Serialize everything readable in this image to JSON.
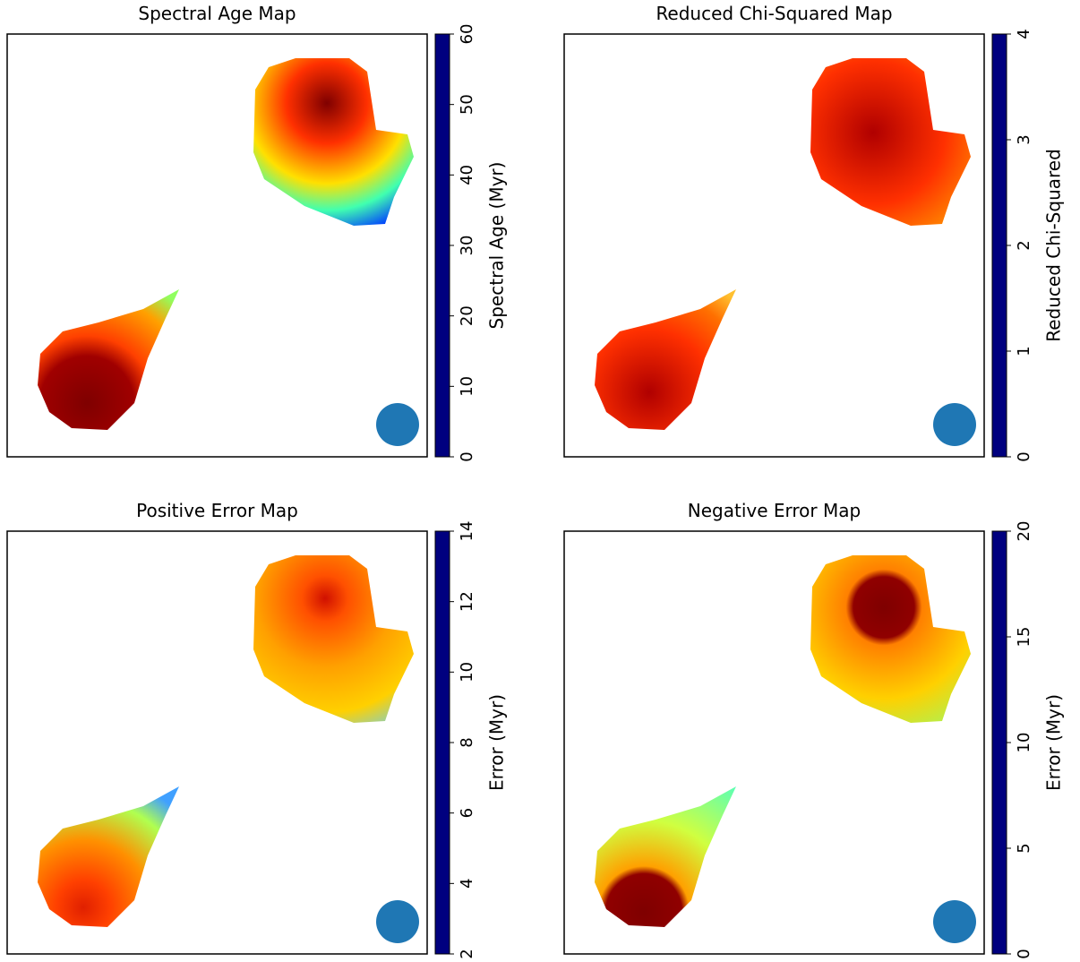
{
  "chart_data": [
    {
      "type": "heatmap",
      "title": "Spectral Age Map",
      "colorbar_label": "Spectral Age (Myr)",
      "colormap": "jet_r",
      "clim": [
        0,
        60
      ],
      "cticks": [
        0,
        10,
        20,
        30,
        40,
        50,
        60
      ]
    },
    {
      "type": "heatmap",
      "title": "Reduced Chi-Squared Map",
      "colorbar_label": "Reduced Chi-Squared",
      "colormap": "jet_r",
      "clim": [
        0,
        4
      ],
      "cticks": [
        0,
        1,
        2,
        3,
        4
      ]
    },
    {
      "type": "heatmap",
      "title": "Positive Error Map",
      "colorbar_label": "Error (Myr)",
      "colormap": "jet_r",
      "clim": [
        2,
        14
      ],
      "cticks": [
        2,
        4,
        6,
        8,
        10,
        12,
        14
      ]
    },
    {
      "type": "heatmap",
      "title": "Negative Error Map",
      "colorbar_label": "Error (Myr)",
      "colormap": "jet_r",
      "clim": [
        0,
        20
      ],
      "cticks": [
        0,
        5,
        10,
        15,
        20
      ]
    }
  ]
}
